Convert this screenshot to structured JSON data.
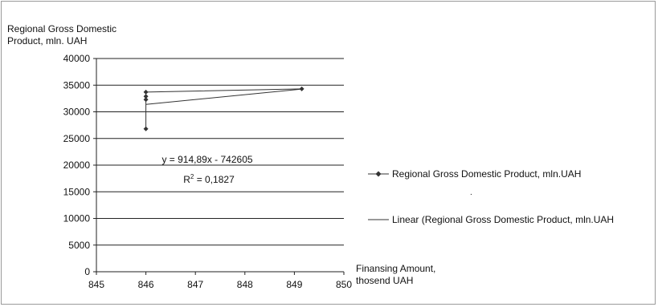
{
  "chart_data": {
    "type": "scatter",
    "ylabel": "Regional Gross Domestic\nProduct, mln. UAH",
    "xlabel": "Finansing Amount,\nthosend UAH",
    "xlim": [
      845,
      850
    ],
    "ylim": [
      0,
      40000
    ],
    "x_ticks": [
      845,
      846,
      847,
      848,
      849,
      850
    ],
    "y_ticks": [
      0,
      5000,
      10000,
      15000,
      20000,
      25000,
      30000,
      35000,
      40000
    ],
    "grid": "horizontal",
    "legend": "right",
    "series": [
      {
        "name": "Regional Gross Domestic Product, mln.UAH",
        "marker": "diamond",
        "color": "#333333",
        "points": [
          {
            "x": 846,
            "y": 26800
          },
          {
            "x": 846,
            "y": 32300
          },
          {
            "x": 846,
            "y": 32900
          },
          {
            "x": 846,
            "y": 33700
          },
          {
            "x": 849.15,
            "y": 34300
          }
        ]
      },
      {
        "name": "Linear (Regional Gross Domestic Product, mln.UAH",
        "type": "trendline",
        "color": "#333333",
        "slope": 914.89,
        "intercept": -742605,
        "x_range": [
          846,
          849.15
        ]
      }
    ],
    "annotations": {
      "equation": "y = 914,89x - 742605",
      "r2_prefix": "R",
      "r2_exponent": "2",
      "r2_value": " = 0,1827"
    }
  },
  "extra_mark": "."
}
